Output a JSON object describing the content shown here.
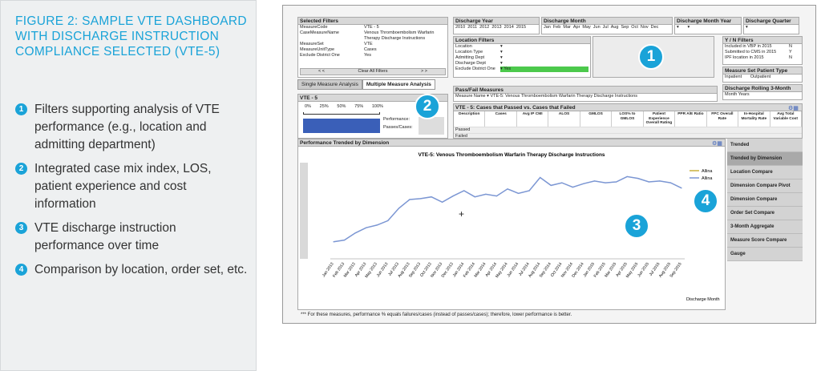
{
  "figure": {
    "title": "FIGURE 2: SAMPLE VTE DASHBOARD WITH DISCHARGE INSTRUCTION COMPLIANCE SELECTED (VTE-5)",
    "bullets": [
      {
        "num": "1",
        "text": "Filters supporting analysis of VTE performance (e.g., location and admitting department)"
      },
      {
        "num": "2",
        "text": "Integrated case mix index, LOS, patient experience and cost information"
      },
      {
        "num": "3",
        "text": "VTE discharge instruction performance over time"
      },
      {
        "num": "4",
        "text": "Comparison by location, order set, etc."
      }
    ]
  },
  "dashboard": {
    "selected_filters": {
      "title": "Selected Filters",
      "rows": [
        {
          "k": "MeasureCode",
          "v": "VTE - 5"
        },
        {
          "k": "CaseMeasureName",
          "v": "Venous Thromboembolism Warfarin Therapy Discharge Instructions"
        },
        {
          "k": "MeasureSet",
          "v": "VTE"
        },
        {
          "k": "MeasureUnitType",
          "v": "Cases"
        },
        {
          "k": "Exclude District One",
          "v": "Yes"
        }
      ],
      "clear": "Clear All Filters"
    },
    "discharge_year": {
      "title": "Discharge Year",
      "years": [
        "2010",
        "2011",
        "2012",
        "2013",
        "2014",
        "2015"
      ]
    },
    "discharge_month": {
      "title": "Discharge Month",
      "months": [
        "Jan",
        "Feb",
        "Mar",
        "Apr",
        "May",
        "Jun",
        "Jul",
        "Aug",
        "Sep",
        "Oct",
        "Nov",
        "Dec"
      ]
    },
    "discharge_month_year": "Discharge Month Year",
    "discharge_quarter": "Discharge Quarter",
    "location_filters": {
      "title": "Location Filters",
      "rows": [
        "Location",
        "Location Type",
        "Admitting Dept",
        "Discharge Dept",
        "Exclude District One"
      ],
      "selected": "Yes"
    },
    "yn_filters": {
      "title": "Y / N Filters",
      "rows": [
        {
          "k": "Included in VBP in 2015",
          "v": "N"
        },
        {
          "k": "Submitted to CMS in 2015",
          "v": "Y"
        },
        {
          "k": "IPF location in 2015",
          "v": "N"
        }
      ]
    },
    "patient_type": {
      "title": "Measure Set Patient Type",
      "options": [
        "Inpatient",
        "Outpatient"
      ]
    },
    "rolling": {
      "title": "Discharge Rolling 3-Month",
      "value": "Month Years"
    },
    "tabs": [
      "Single Measure Analysis",
      "Multiple Measure Analysis"
    ],
    "vte_box": {
      "title": "VTE - 5",
      "scale": [
        "0%",
        "25%",
        "50%",
        "75%",
        "100%"
      ],
      "perf": "Performance:",
      "passes": "Passes/Cases:",
      "bar_fill": 1.0
    },
    "pass_fail": {
      "title": "Pass/Fail Measures",
      "label": "Measure Name",
      "value": "VTE-5: Venous Thromboembolism Warfarin Therapy Discharge Instructions"
    },
    "cases_table": {
      "title": "VTE - 5: Cases that Passed vs. Cases that Failed",
      "headers": [
        "Description",
        "Cases",
        "Avg IP CMI",
        "ALOS",
        "GMLOS",
        "LOS% to GMLOS",
        "Patient Experience Overall Rating",
        "PPR A/E Ratio",
        "FPC Overall Rate",
        "In-Hospital Mortality Rate",
        "Avg Total Variable Cost"
      ],
      "rows": [
        "Passed",
        "Failed"
      ]
    },
    "trend_box_title": "Performance Trended by Dimension",
    "side_buttons": [
      "Trended",
      "Trended by Dimension",
      "Location Compare",
      "Dimension Compare Pivot",
      "Dimension Compare",
      "Order Set Compare",
      "3-Month Aggregate",
      "Measure Score Compare",
      "Gauge"
    ],
    "footnote": "*** For these measures, performance % equals failures/cases (instead of passes/cases); therefore, lower performance is better.",
    "callouts": [
      "1",
      "2",
      "3",
      "4"
    ]
  },
  "chart_data": {
    "type": "line",
    "title": "VTE-5: Venous Thromboembolism Warfarin Therapy Discharge Instructions",
    "xlabel": "Discharge Month",
    "legend": [
      "Allina",
      "Allina"
    ],
    "legend_placement": "top-right",
    "categories": [
      "Jan 2013",
      "Feb 2013",
      "Mar 2013",
      "Apr 2013",
      "May 2013",
      "Jun 2013",
      "Jul 2013",
      "Aug 2013",
      "Sep 2013",
      "Oct 2013",
      "Nov 2013",
      "Dec 2013",
      "Jan 2014",
      "Feb 2014",
      "Mar 2014",
      "Apr 2014",
      "May 2014",
      "Jun 2014",
      "Jul 2014",
      "Aug 2014",
      "Sep 2014",
      "Oct 2014",
      "Nov 2014",
      "Dec 2014",
      "Jan 2015",
      "Feb 2015",
      "Mar 2015",
      "Apr 2015",
      "May 2015",
      "Jun 2015",
      "Jul 2015",
      "Aug 2015",
      "Sep 2015"
    ],
    "series": [
      {
        "name": "Allina",
        "values": [
          12,
          14,
          22,
          28,
          31,
          36,
          50,
          60,
          61,
          63,
          57,
          64,
          70,
          63,
          66,
          64,
          72,
          67,
          70,
          85,
          76,
          79,
          74,
          78,
          81,
          79,
          80,
          86,
          84,
          80,
          81,
          79,
          73
        ]
      }
    ],
    "ylim": [
      0,
      100
    ],
    "grid": false
  }
}
